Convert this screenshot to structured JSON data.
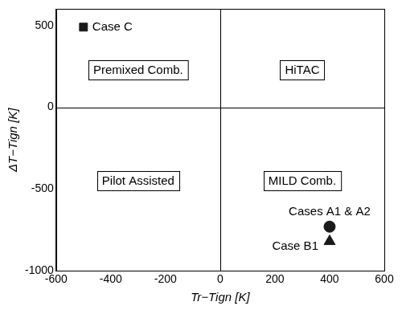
{
  "chart_data": {
    "type": "scatter",
    "x_label": "Tr−Tign [K]",
    "y_label": "ΔT−Tign [K]",
    "xlim": [
      -600,
      600
    ],
    "xticks": [
      -600,
      -400,
      -200,
      0,
      200,
      400,
      600
    ],
    "ylim": [
      -1000,
      600
    ],
    "yticks": [
      -1000,
      -500,
      0,
      500
    ],
    "grid": false,
    "reference_lines": {
      "x": [
        0
      ],
      "y": [
        0
      ]
    },
    "regions": [
      {
        "text": "Premixed Comb.",
        "x": -300,
        "y": 230
      },
      {
        "text": "HiTAC",
        "x": 300,
        "y": 230
      },
      {
        "text": "Pilot Assisted",
        "x": -300,
        "y": -450
      },
      {
        "text": "MILD Comb.",
        "x": 300,
        "y": -450
      }
    ],
    "series": [
      {
        "name": "Case C",
        "marker": "square",
        "color": "#1a1a1a",
        "x": [
          -500
        ],
        "values": [
          490
        ]
      },
      {
        "name": "Cases A1 & A2",
        "marker": "circle",
        "color": "#1a1a1a",
        "x": [
          400
        ],
        "values": [
          -730
        ]
      },
      {
        "name": "Case B1",
        "marker": "triangle",
        "color": "#1a1a1a",
        "x": [
          400
        ],
        "values": [
          -820
        ]
      }
    ]
  }
}
